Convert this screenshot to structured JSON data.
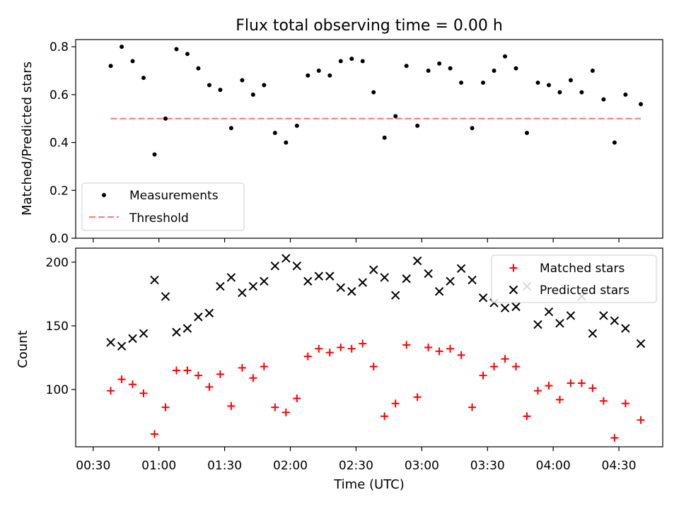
{
  "title": "Flux total observing time = 0.00 h",
  "xlabel": "Time (UTC)",
  "x_tick_labels": [
    "00:30",
    "01:00",
    "01:30",
    "02:00",
    "02:30",
    "03:00",
    "03:30",
    "04:00",
    "04:30"
  ],
  "colors": {
    "measurements": "#000000",
    "threshold": "#ff7f7f",
    "matched": "#ff0000",
    "predicted": "#000000"
  },
  "chart_data": [
    {
      "type": "scatter",
      "ylabel": "Matched/Predicted stars",
      "ylim": [
        0,
        0.83
      ],
      "y_ticks": [
        0.0,
        0.2,
        0.4,
        0.6,
        0.8
      ],
      "y_tick_labels": [
        "0.0",
        "0.2",
        "0.4",
        "0.6",
        "0.8"
      ],
      "legend": {
        "position": "lower-left",
        "entries": [
          "Measurements",
          "Threshold"
        ]
      },
      "threshold": {
        "name": "Threshold",
        "value": 0.5,
        "x_range": [
          "00:38",
          "04:40"
        ]
      },
      "series": [
        {
          "name": "Measurements",
          "x": [
            "00:38",
            "00:43",
            "00:48",
            "00:53",
            "00:58",
            "01:03",
            "01:08",
            "01:13",
            "01:18",
            "01:23",
            "01:28",
            "01:33",
            "01:38",
            "01:43",
            "01:48",
            "01:53",
            "01:58",
            "02:03",
            "02:08",
            "02:13",
            "02:18",
            "02:23",
            "02:28",
            "02:33",
            "02:38",
            "02:43",
            "02:48",
            "02:53",
            "02:58",
            "03:03",
            "03:08",
            "03:13",
            "03:18",
            "03:23",
            "03:28",
            "03:33",
            "03:38",
            "03:43",
            "03:48",
            "03:53",
            "03:58",
            "04:03",
            "04:08",
            "04:13",
            "04:18",
            "04:23",
            "04:28",
            "04:33",
            "04:40"
          ],
          "y": [
            0.72,
            0.8,
            0.74,
            0.67,
            0.35,
            0.5,
            0.79,
            0.77,
            0.71,
            0.64,
            0.62,
            0.46,
            0.66,
            0.6,
            0.64,
            0.44,
            0.4,
            0.47,
            0.68,
            0.7,
            0.68,
            0.74,
            0.75,
            0.74,
            0.61,
            0.42,
            0.51,
            0.72,
            0.47,
            0.7,
            0.73,
            0.71,
            0.65,
            0.46,
            0.65,
            0.7,
            0.76,
            0.71,
            0.44,
            0.65,
            0.64,
            0.61,
            0.66,
            0.61,
            0.7,
            0.58,
            0.4,
            0.6,
            0.56
          ]
        }
      ]
    },
    {
      "type": "scatter",
      "ylabel": "Count",
      "ylim": [
        55,
        211
      ],
      "y_ticks": [
        100,
        150,
        200
      ],
      "y_tick_labels": [
        "100",
        "150",
        "200"
      ],
      "legend": {
        "position": "top-right",
        "entries": [
          "Matched stars",
          "Predicted stars"
        ]
      },
      "series": [
        {
          "name": "Matched stars",
          "x": [
            "00:38",
            "00:43",
            "00:48",
            "00:53",
            "00:58",
            "01:03",
            "01:08",
            "01:13",
            "01:18",
            "01:23",
            "01:28",
            "01:33",
            "01:38",
            "01:43",
            "01:48",
            "01:53",
            "01:58",
            "02:03",
            "02:08",
            "02:13",
            "02:18",
            "02:23",
            "02:28",
            "02:33",
            "02:38",
            "02:43",
            "02:48",
            "02:53",
            "02:58",
            "03:03",
            "03:08",
            "03:13",
            "03:18",
            "03:23",
            "03:28",
            "03:33",
            "03:38",
            "03:43",
            "03:48",
            "03:53",
            "03:58",
            "04:03",
            "04:08",
            "04:13",
            "04:18",
            "04:23",
            "04:28",
            "04:33",
            "04:40"
          ],
          "y": [
            99,
            108,
            104,
            97,
            65,
            86,
            115,
            115,
            111,
            102,
            112,
            87,
            117,
            109,
            118,
            86,
            82,
            93,
            126,
            132,
            129,
            133,
            132,
            136,
            118,
            79,
            89,
            135,
            94,
            133,
            130,
            132,
            127,
            86,
            111,
            118,
            124,
            118,
            79,
            99,
            103,
            92,
            105,
            105,
            101,
            91,
            62,
            89,
            76
          ]
        },
        {
          "name": "Predicted stars",
          "x": [
            "00:38",
            "00:43",
            "00:48",
            "00:53",
            "00:58",
            "01:03",
            "01:08",
            "01:13",
            "01:18",
            "01:23",
            "01:28",
            "01:33",
            "01:38",
            "01:43",
            "01:48",
            "01:53",
            "01:58",
            "02:03",
            "02:08",
            "02:13",
            "02:18",
            "02:23",
            "02:28",
            "02:33",
            "02:38",
            "02:43",
            "02:48",
            "02:53",
            "02:58",
            "03:03",
            "03:08",
            "03:13",
            "03:18",
            "03:23",
            "03:28",
            "03:33",
            "03:38",
            "03:43",
            "03:48",
            "03:53",
            "03:58",
            "04:03",
            "04:08",
            "04:13",
            "04:18",
            "04:23",
            "04:28",
            "04:33",
            "04:40"
          ],
          "y": [
            137,
            134,
            140,
            144,
            186,
            173,
            145,
            148,
            157,
            160,
            181,
            188,
            176,
            181,
            185,
            197,
            203,
            197,
            185,
            189,
            189,
            180,
            177,
            184,
            194,
            188,
            174,
            187,
            201,
            191,
            177,
            185,
            195,
            186,
            172,
            168,
            164,
            165,
            181,
            151,
            161,
            152,
            158,
            173,
            144,
            158,
            154,
            148,
            136
          ]
        }
      ]
    }
  ]
}
